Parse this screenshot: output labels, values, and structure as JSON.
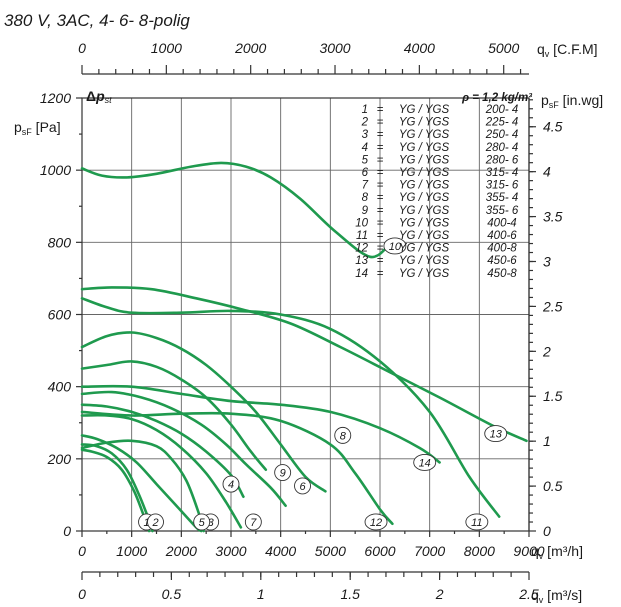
{
  "chart_data": {
    "type": "line",
    "title": "380 V, 3AC, 4- 6- 8-polig",
    "density_label": "ρ = 1,2 kg/m³",
    "delta_p_label": "Δp_st",
    "x_axes": {
      "primary": {
        "unit": "q_v [m³/h]",
        "range": [
          0,
          9000
        ],
        "ticks": [
          "0",
          "1000",
          "2000",
          "3000",
          "4000",
          "5000",
          "6000",
          "7000",
          "8000",
          "9000"
        ]
      },
      "cfm": {
        "unit": "q_v [C.F.M]",
        "range_cfm": [
          0,
          5300
        ],
        "ticks": [
          "0",
          "1000",
          "2000",
          "3000",
          "4000",
          "5000"
        ]
      },
      "m3s": {
        "unit": "q_v [m³/s]",
        "range_m3s": [
          0,
          2.5
        ],
        "ticks": [
          "0",
          "0.5",
          "1",
          "1.5",
          "2",
          "2.5"
        ]
      }
    },
    "y_axes": {
      "left": {
        "unit": "p_sF [Pa]",
        "range": [
          0,
          1200
        ],
        "ticks": [
          "0",
          "200",
          "400",
          "600",
          "800",
          "1000",
          "1200"
        ]
      },
      "right": {
        "unit": "p_sF [in.wg]",
        "range_inwg": [
          0,
          4.82
        ],
        "ticks": [
          "0",
          "0.5",
          "1",
          "1.5",
          "2",
          "2.5",
          "3",
          "3.5",
          "4",
          "4.5"
        ]
      }
    },
    "legend": [
      {
        "num": "1",
        "model": "YG / YGS",
        "size": "200- 4"
      },
      {
        "num": "2",
        "model": "YG / YGS",
        "size": "225- 4"
      },
      {
        "num": "3",
        "model": "YG / YGS",
        "size": "250- 4"
      },
      {
        "num": "4",
        "model": "YG / YGS",
        "size": "280- 4"
      },
      {
        "num": "5",
        "model": "YG / YGS",
        "size": "280- 6"
      },
      {
        "num": "6",
        "model": "YG / YGS",
        "size": "315- 4"
      },
      {
        "num": "7",
        "model": "YG / YGS",
        "size": "315- 6"
      },
      {
        "num": "8",
        "model": "YG / YGS",
        "size": "355- 4"
      },
      {
        "num": "9",
        "model": "YG / YGS",
        "size": "355- 6"
      },
      {
        "num": "10",
        "model": "YG / YGS",
        "size": "400-4"
      },
      {
        "num": "11",
        "model": "YG / YGS",
        "size": "400-6"
      },
      {
        "num": "12",
        "model": "YG / YGS",
        "size": "400-8"
      },
      {
        "num": "13",
        "model": "YG / YGS",
        "size": "450-6"
      },
      {
        "num": "14",
        "model": "YG / YGS",
        "size": "450-8"
      }
    ],
    "series": [
      {
        "id": "1",
        "points": [
          [
            0,
            225
          ],
          [
            200,
            220
          ],
          [
            500,
            205
          ],
          [
            800,
            170
          ],
          [
            1050,
            110
          ],
          [
            1250,
            40
          ],
          [
            1350,
            0
          ]
        ],
        "marker": [
          1300,
          25
        ]
      },
      {
        "id": "2",
        "points": [
          [
            0,
            240
          ],
          [
            300,
            235
          ],
          [
            600,
            215
          ],
          [
            900,
            170
          ],
          [
            1150,
            100
          ],
          [
            1350,
            30
          ],
          [
            1420,
            0
          ]
        ],
        "marker": [
          1480,
          25
        ]
      },
      {
        "id": "3",
        "points": [
          [
            0,
            265
          ],
          [
            300,
            255
          ],
          [
            700,
            230
          ],
          [
            1100,
            190
          ],
          [
            1500,
            130
          ],
          [
            1900,
            70
          ],
          [
            2300,
            10
          ],
          [
            2400,
            0
          ]
        ],
        "marker": [
          2590,
          25
        ]
      },
      {
        "id": "4",
        "points": [
          [
            0,
            350
          ],
          [
            500,
            345
          ],
          [
            1000,
            330
          ],
          [
            1500,
            305
          ],
          [
            2000,
            270
          ],
          [
            2500,
            220
          ],
          [
            3000,
            155
          ],
          [
            3250,
            95
          ]
        ],
        "marker": [
          3000,
          130
        ]
      },
      {
        "id": "5",
        "points": [
          [
            0,
            230
          ],
          [
            500,
            245
          ],
          [
            1000,
            250
          ],
          [
            1500,
            235
          ],
          [
            1800,
            200
          ],
          [
            2100,
            140
          ],
          [
            2350,
            50
          ],
          [
            2450,
            0
          ]
        ],
        "marker": [
          2410,
          25
        ]
      },
      {
        "id": "6",
        "points": [
          [
            0,
            380
          ],
          [
            600,
            385
          ],
          [
            1200,
            370
          ],
          [
            1800,
            340
          ],
          [
            2400,
            295
          ],
          [
            2900,
            240
          ],
          [
            3300,
            185
          ],
          [
            3800,
            120
          ],
          [
            4100,
            70
          ]
        ],
        "marker": [
          4440,
          125
        ]
      },
      {
        "id": "7",
        "points": [
          [
            0,
            320
          ],
          [
            500,
            320
          ],
          [
            1000,
            310
          ],
          [
            1500,
            280
          ],
          [
            2000,
            230
          ],
          [
            2500,
            160
          ],
          [
            2900,
            80
          ],
          [
            3200,
            10
          ]
        ],
        "marker": [
          3450,
          25
        ]
      },
      {
        "id": "8",
        "points": [
          [
            0,
            510
          ],
          [
            500,
            540
          ],
          [
            1000,
            550
          ],
          [
            1500,
            535
          ],
          [
            2000,
            505
          ],
          [
            2500,
            460
          ],
          [
            3000,
            400
          ],
          [
            3500,
            330
          ],
          [
            4000,
            240
          ],
          [
            4500,
            150
          ],
          [
            4900,
            110
          ]
        ],
        "marker": [
          5250,
          265
        ]
      },
      {
        "id": "9",
        "points": [
          [
            0,
            450
          ],
          [
            500,
            460
          ],
          [
            1000,
            470
          ],
          [
            1500,
            455
          ],
          [
            2000,
            420
          ],
          [
            2500,
            370
          ],
          [
            3000,
            295
          ],
          [
            3400,
            220
          ],
          [
            3700,
            170
          ]
        ],
        "marker": [
          4040,
          162
        ]
      },
      {
        "id": "10",
        "points": [
          [
            0,
            1005
          ],
          [
            400,
            985
          ],
          [
            900,
            980
          ],
          [
            1500,
            990
          ],
          [
            2200,
            1010
          ],
          [
            2800,
            1020
          ],
          [
            3300,
            1010
          ],
          [
            3800,
            980
          ],
          [
            4400,
            920
          ],
          [
            5100,
            830
          ],
          [
            5800,
            760
          ],
          [
            6200,
            795
          ]
        ],
        "marker": [
          6300,
          790
        ]
      },
      {
        "id": "11",
        "points": [
          [
            0,
            645
          ],
          [
            500,
            620
          ],
          [
            1000,
            605
          ],
          [
            2000,
            605
          ],
          [
            3000,
            610
          ],
          [
            4000,
            600
          ],
          [
            5000,
            560
          ],
          [
            6000,
            470
          ],
          [
            7000,
            330
          ],
          [
            7800,
            150
          ],
          [
            8400,
            40
          ]
        ],
        "marker": [
          7950,
          25
        ]
      },
      {
        "id": "12",
        "points": [
          [
            0,
            330
          ],
          [
            1000,
            320
          ],
          [
            2000,
            325
          ],
          [
            3000,
            325
          ],
          [
            4000,
            305
          ],
          [
            5000,
            240
          ],
          [
            5500,
            160
          ],
          [
            6000,
            60
          ],
          [
            6250,
            20
          ]
        ],
        "marker": [
          5920,
          25
        ]
      },
      {
        "id": "13",
        "points": [
          [
            0,
            670
          ],
          [
            600,
            675
          ],
          [
            1400,
            670
          ],
          [
            2300,
            645
          ],
          [
            3200,
            615
          ],
          [
            4200,
            575
          ],
          [
            5200,
            510
          ],
          [
            6200,
            440
          ],
          [
            7200,
            370
          ],
          [
            8300,
            290
          ],
          [
            8950,
            250
          ]
        ],
        "marker": [
          8330,
          270
        ]
      },
      {
        "id": "14",
        "points": [
          [
            0,
            400
          ],
          [
            1000,
            400
          ],
          [
            2000,
            380
          ],
          [
            3000,
            360
          ],
          [
            4000,
            350
          ],
          [
            5000,
            330
          ],
          [
            6000,
            285
          ],
          [
            6800,
            230
          ],
          [
            7200,
            190
          ]
        ],
        "marker": [
          6900,
          190
        ]
      }
    ]
  }
}
